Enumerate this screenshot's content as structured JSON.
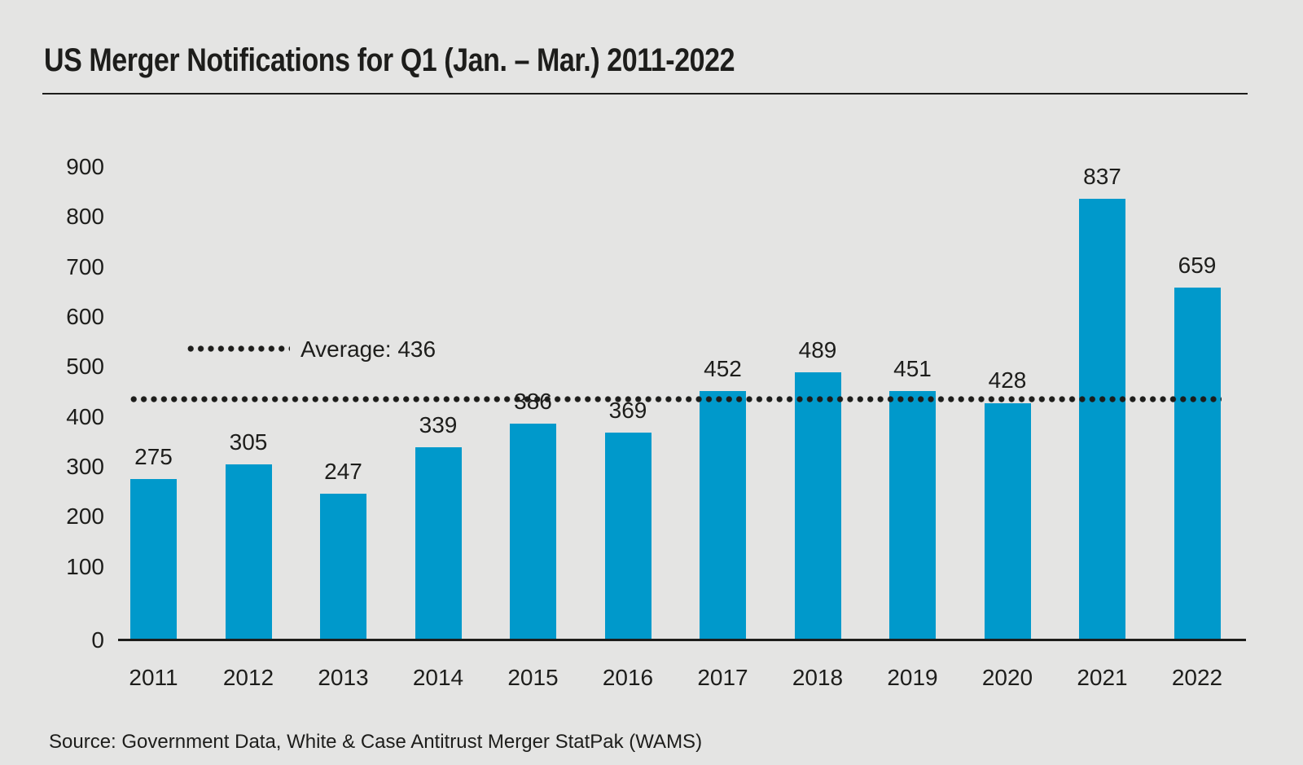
{
  "page": {
    "title": "US Merger Notifications for Q1 (Jan. – Mar.) 2011-2022",
    "source": "Source: Government Data, White & Case Antitrust Merger StatPak (WAMS)"
  },
  "colors": {
    "background": "#E4E4E3",
    "bar": "#0099CB",
    "text": "#1D1D1B",
    "axis": "#1D1D1B",
    "average_dots": "#1D1D1B"
  },
  "legend": {
    "average_label": "Average: 436"
  },
  "chart_data": {
    "type": "bar",
    "title": "US Merger Notifications for Q1 (Jan. – Mar.) 2011-2022",
    "categories": [
      "2011",
      "2012",
      "2013",
      "2014",
      "2015",
      "2016",
      "2017",
      "2018",
      "2019",
      "2020",
      "2021",
      "2022"
    ],
    "values": [
      275,
      305,
      247,
      339,
      386,
      369,
      452,
      489,
      451,
      428,
      837,
      659
    ],
    "average": 436,
    "average_label": "Average: 436",
    "average_line_style": "dotted",
    "xlabel": "",
    "ylabel": "",
    "ylim": [
      0,
      900
    ],
    "yticks": [
      0,
      100,
      200,
      300,
      400,
      500,
      600,
      700,
      800,
      900
    ],
    "grid": false,
    "legend_position": "inside-upper-left",
    "bar_color": "#0099CB"
  }
}
